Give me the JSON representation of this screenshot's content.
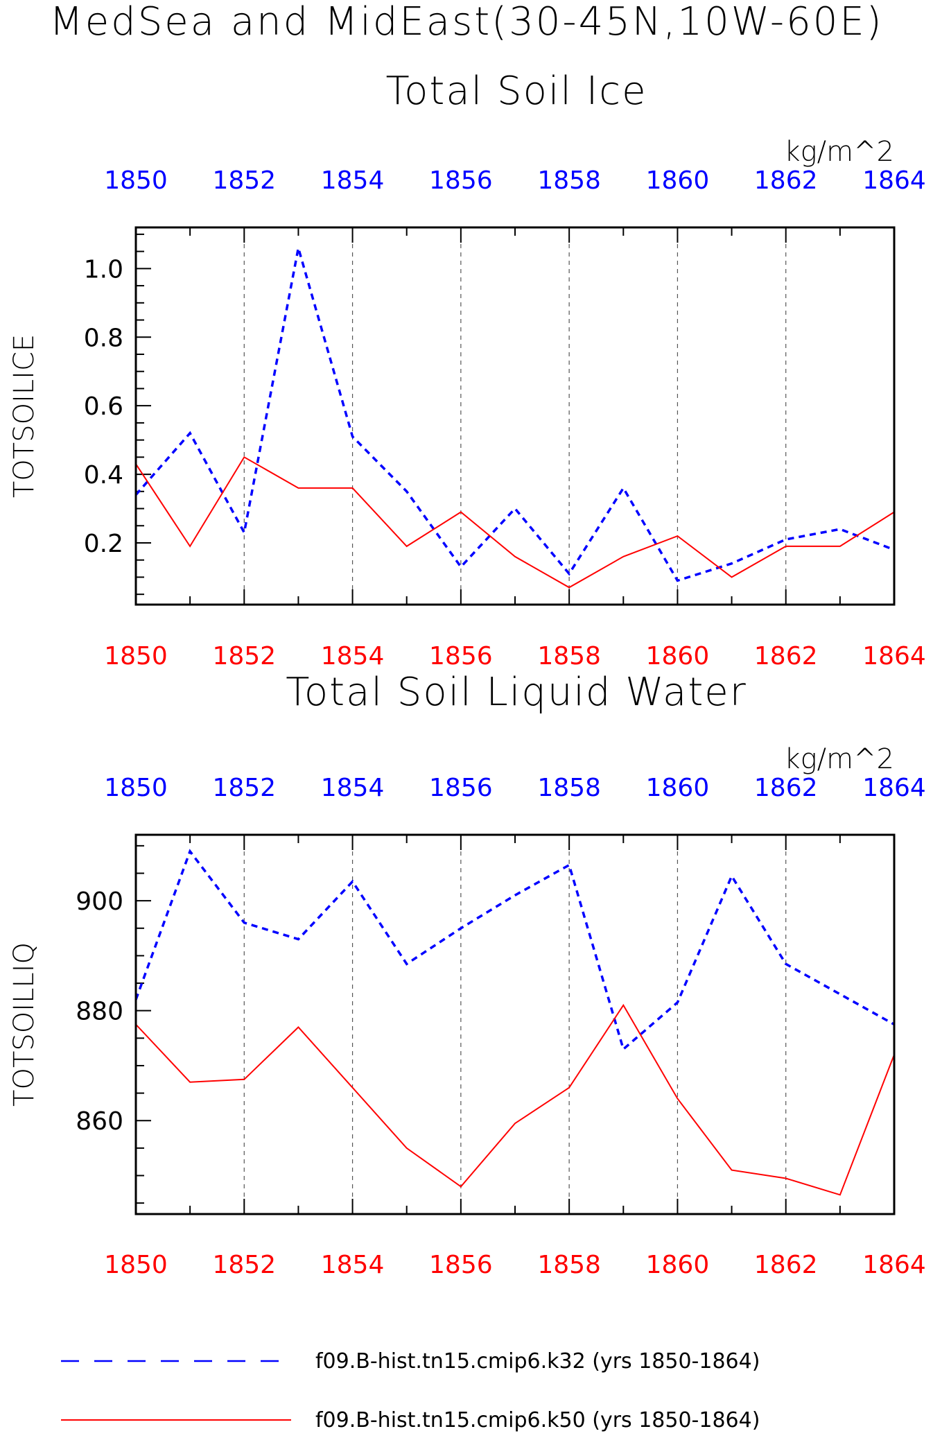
{
  "page": {
    "title_line1": "MedSea and MidEast(30-45N,10W-60E)"
  },
  "colors": {
    "k32": "#0000ff",
    "k50": "#ff0000",
    "axis": "#000000",
    "grid": "#555555"
  },
  "chart_data": [
    {
      "type": "line",
      "title": "Total Soil Ice",
      "units": "kg/m^2",
      "xlabel": "",
      "ylabel": "TOTSOILICE",
      "x": [
        1850,
        1851,
        1852,
        1853,
        1854,
        1855,
        1856,
        1857,
        1858,
        1859,
        1860,
        1861,
        1862,
        1863,
        1864
      ],
      "xlim": [
        1850,
        1864
      ],
      "xticks": [
        "1850",
        "1852",
        "1854",
        "1856",
        "1858",
        "1860",
        "1862",
        "1864"
      ],
      "ylim": [
        0.02,
        1.12
      ],
      "yticks": [
        "0.2",
        "0.4",
        "0.6",
        "0.8",
        "1.0"
      ],
      "grid": "vertical dashed at labeled years",
      "series": [
        {
          "name": "f09.B-hist.tn15.cmip6.k32 (yrs 1850-1864)",
          "style": "dashed",
          "values": [
            0.34,
            0.52,
            0.23,
            1.06,
            0.51,
            0.35,
            0.13,
            0.3,
            0.11,
            0.36,
            0.09,
            0.14,
            0.21,
            0.24,
            0.18
          ]
        },
        {
          "name": "f09.B-hist.tn15.cmip6.k50 (yrs 1850-1864)",
          "style": "solid",
          "values": [
            0.43,
            0.19,
            0.45,
            0.36,
            0.36,
            0.19,
            0.29,
            0.16,
            0.07,
            0.16,
            0.22,
            0.1,
            0.19,
            0.19,
            0.29
          ]
        }
      ]
    },
    {
      "type": "line",
      "title": "Total Soil Liquid Water",
      "units": "kg/m^2",
      "xlabel": "",
      "ylabel": "TOTSOILLIQ",
      "x": [
        1850,
        1851,
        1852,
        1853,
        1854,
        1855,
        1856,
        1857,
        1858,
        1859,
        1860,
        1861,
        1862,
        1863,
        1864
      ],
      "xlim": [
        1850,
        1864
      ],
      "xticks": [
        "1850",
        "1852",
        "1854",
        "1856",
        "1858",
        "1860",
        "1862",
        "1864"
      ],
      "ylim": [
        843,
        912
      ],
      "yticks": [
        "860",
        "880",
        "900"
      ],
      "grid": "vertical dashed at labeled years",
      "series": [
        {
          "name": "f09.B-hist.tn15.cmip6.k32 (yrs 1850-1864)",
          "style": "dashed",
          "values": [
            882,
            909,
            896,
            893,
            903.5,
            888.5,
            895,
            901,
            906.5,
            873,
            881.5,
            904.5,
            888.5,
            883,
            877.5
          ]
        },
        {
          "name": "f09.B-hist.tn15.cmip6.k50 (yrs 1850-1864)",
          "style": "solid",
          "values": [
            877.5,
            867,
            867.5,
            877,
            866,
            855,
            848,
            859.5,
            866,
            881,
            864,
            851,
            849.5,
            846.5,
            872
          ]
        }
      ]
    }
  ],
  "legend": [
    {
      "label": "f09.B-hist.tn15.cmip6.k32 (yrs 1850-1864)",
      "style": "dashed",
      "color": "#0000ff"
    },
    {
      "label": "f09.B-hist.tn15.cmip6.k50 (yrs 1850-1864)",
      "style": "solid",
      "color": "#ff0000"
    }
  ]
}
